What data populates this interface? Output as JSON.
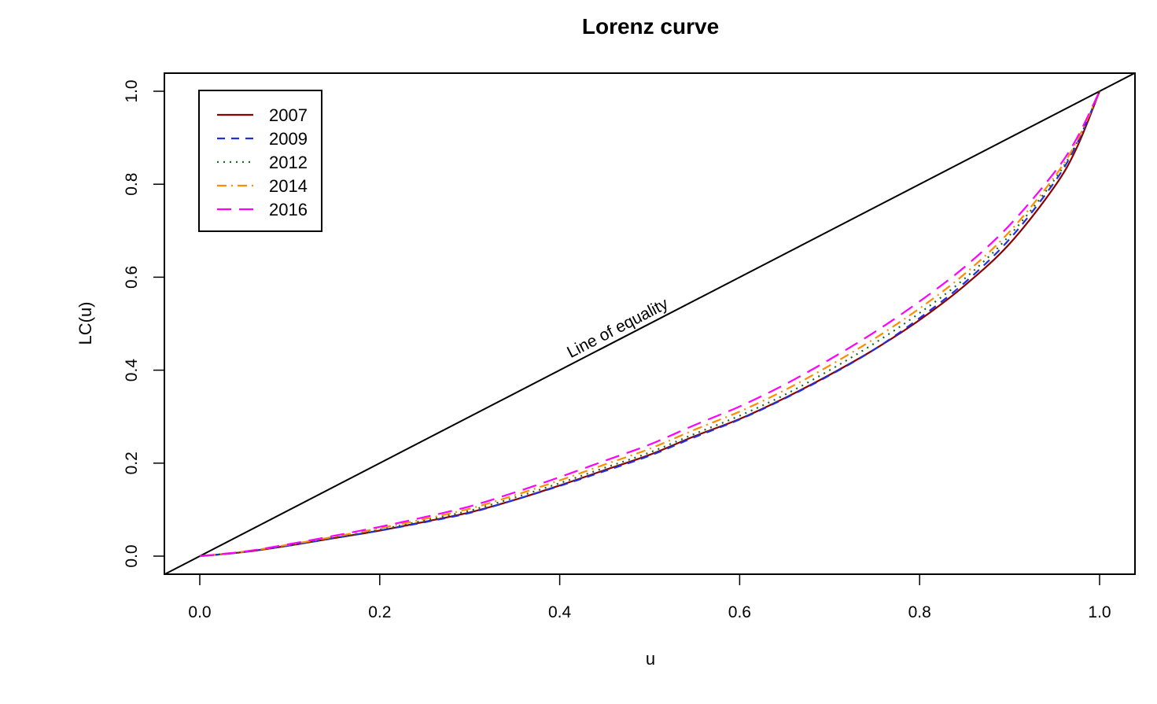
{
  "chart_data": {
    "type": "line",
    "title": "Lorenz curve",
    "xlabel": "u",
    "ylabel": "LC(u)",
    "xlim": [
      0,
      1
    ],
    "ylim": [
      0,
      1
    ],
    "xticks": [
      "0.0",
      "0.2",
      "0.4",
      "0.6",
      "0.8",
      "1.0"
    ],
    "yticks": [
      "0.0",
      "0.2",
      "0.4",
      "0.6",
      "0.8",
      "1.0"
    ],
    "grid": false,
    "legend_position": "top-left",
    "annotation": "Line of equality",
    "equality_line": {
      "x": [
        0,
        1
      ],
      "y": [
        0,
        1
      ]
    },
    "x": [
      0,
      0.05,
      0.1,
      0.15,
      0.2,
      0.25,
      0.3,
      0.35,
      0.4,
      0.45,
      0.5,
      0.55,
      0.6,
      0.65,
      0.7,
      0.75,
      0.8,
      0.85,
      0.9,
      0.95,
      0.975,
      1.0
    ],
    "series": [
      {
        "name": "2007",
        "color": "#8b0000",
        "dash": "solid",
        "values": [
          0,
          0.009,
          0.023,
          0.039,
          0.055,
          0.074,
          0.094,
          0.121,
          0.152,
          0.185,
          0.218,
          0.258,
          0.295,
          0.34,
          0.39,
          0.445,
          0.508,
          0.582,
          0.672,
          0.795,
          0.88,
          1.0
        ]
      },
      {
        "name": "2009",
        "color": "#1f2fe0",
        "dash": "10,8",
        "values": [
          0,
          0.009,
          0.023,
          0.039,
          0.055,
          0.073,
          0.093,
          0.121,
          0.151,
          0.183,
          0.216,
          0.256,
          0.294,
          0.339,
          0.389,
          0.445,
          0.512,
          0.588,
          0.682,
          0.805,
          0.888,
          1.0
        ]
      },
      {
        "name": "2012",
        "color": "#1a6b1a",
        "dash": "2,6",
        "values": [
          0,
          0.009,
          0.024,
          0.04,
          0.057,
          0.077,
          0.098,
          0.126,
          0.157,
          0.19,
          0.223,
          0.263,
          0.302,
          0.347,
          0.4,
          0.458,
          0.523,
          0.597,
          0.69,
          0.81,
          0.891,
          1.0
        ]
      },
      {
        "name": "2014",
        "color": "#ff8c00",
        "dash": "12,6,2,6",
        "values": [
          0,
          0.01,
          0.025,
          0.042,
          0.06,
          0.08,
          0.102,
          0.131,
          0.163,
          0.197,
          0.231,
          0.272,
          0.311,
          0.357,
          0.41,
          0.468,
          0.533,
          0.607,
          0.698,
          0.816,
          0.894,
          1.0
        ]
      },
      {
        "name": "2016",
        "color": "#ff00ff",
        "dash": "18,10",
        "values": [
          0,
          0.01,
          0.026,
          0.044,
          0.063,
          0.084,
          0.107,
          0.137,
          0.17,
          0.205,
          0.24,
          0.282,
          0.322,
          0.369,
          0.423,
          0.482,
          0.548,
          0.622,
          0.712,
          0.826,
          0.9,
          1.0
        ]
      }
    ]
  }
}
